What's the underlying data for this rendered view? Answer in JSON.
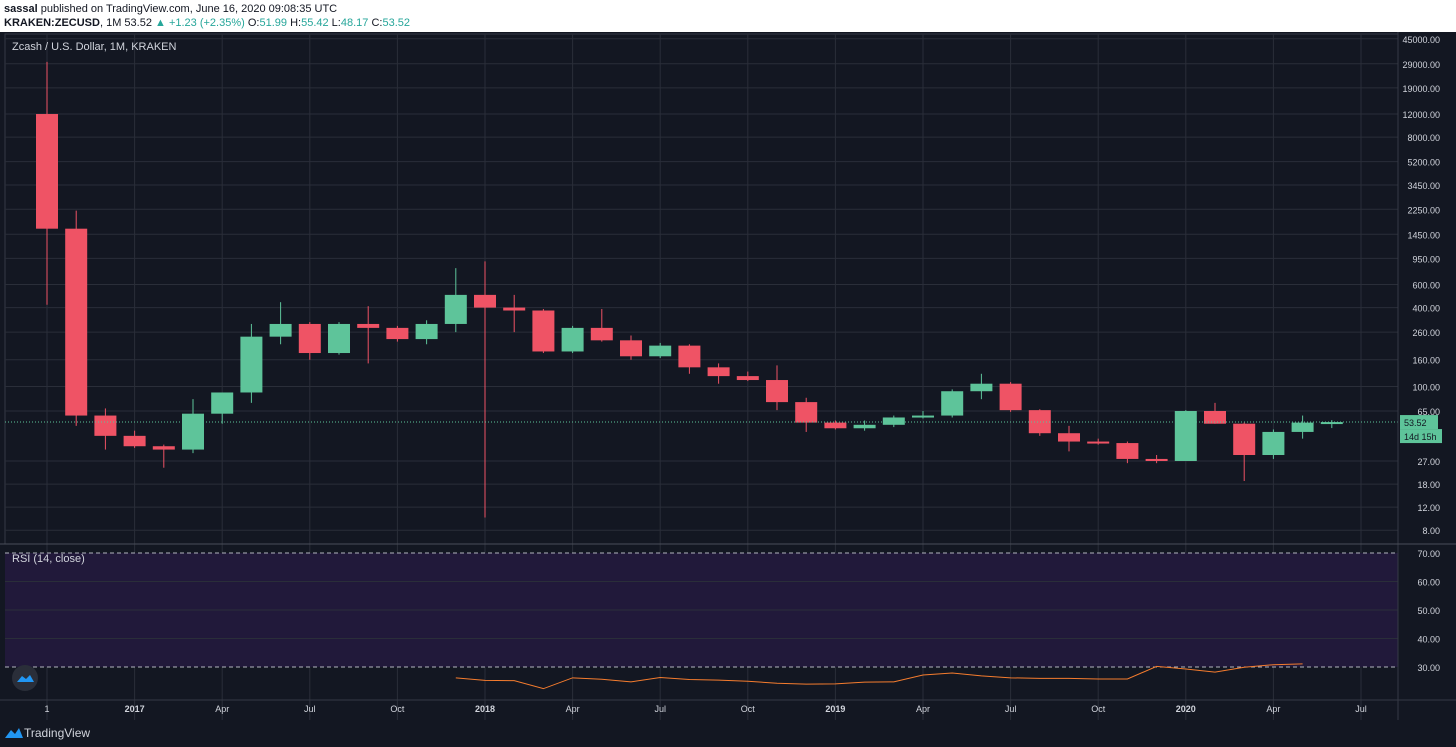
{
  "header": {
    "publisher": "sassal",
    "published_text": "published on TradingView.com, June 16, 2020 09:08:35 UTC",
    "symbol": "KRAKEN:ZECUSD",
    "interval": "1M",
    "last": "53.52",
    "change": "▲ +1.23 (+2.35%)",
    "o_label": "O:",
    "o_value": "51.99",
    "h_label": "H:",
    "h_value": "55.42",
    "l_label": "L:",
    "l_value": "48.17",
    "c_label": "C:",
    "c_value": "53.52"
  },
  "footer": {
    "brand": "TradingView"
  },
  "colors": {
    "bg": "#131722",
    "up": "#5ec49a",
    "down": "#ef5365",
    "rsi": "#f57c2e",
    "rsi_band": "#21193a",
    "grid": "#2a2e39"
  },
  "chart_data": [
    {
      "type": "candlestick",
      "title": "Zcash / U.S. Dollar, 1M, KRAKEN",
      "y_scale": "log",
      "y_ticks": [
        45000,
        29000,
        19000,
        12000,
        8000,
        5200,
        3450,
        2250,
        1450,
        950,
        600,
        400,
        260,
        160,
        100,
        65,
        27,
        18,
        12,
        8
      ],
      "y_tick_labels": [
        "45000.00",
        "29000.00",
        "19000.00",
        "12000.00",
        "8000.00",
        "5200.00",
        "3450.00",
        "2250.00",
        "1450.00",
        "950.00",
        "600.00",
        "400.00",
        "260.00",
        "160.00",
        "100.00",
        "65.00",
        "27.00",
        "18.00",
        "12.00",
        "8.00"
      ],
      "x_tick_labels": [
        "1",
        "2017",
        "Apr",
        "Jul",
        "Oct",
        "2018",
        "Apr",
        "Jul",
        "Oct",
        "2019",
        "Apr",
        "Jul",
        "Oct",
        "2020",
        "Apr",
        "Jul"
      ],
      "last_price_label": "53.52",
      "countdown_label": "14d 15h",
      "candles": [
        {
          "month": "2016-10",
          "o": 12000,
          "h": 30000,
          "l": 420,
          "c": 1600
        },
        {
          "month": "2016-11",
          "o": 1600,
          "h": 2200,
          "l": 50,
          "c": 60
        },
        {
          "month": "2016-12",
          "o": 60,
          "h": 68,
          "l": 33,
          "c": 42
        },
        {
          "month": "2017-01",
          "o": 42,
          "h": 46,
          "l": 34,
          "c": 35
        },
        {
          "month": "2017-02",
          "o": 35,
          "h": 36,
          "l": 24,
          "c": 33
        },
        {
          "month": "2017-03",
          "o": 33,
          "h": 80,
          "l": 31,
          "c": 62
        },
        {
          "month": "2017-04",
          "o": 62,
          "h": 90,
          "l": 52,
          "c": 90
        },
        {
          "month": "2017-05",
          "o": 90,
          "h": 300,
          "l": 75,
          "c": 240
        },
        {
          "month": "2017-06",
          "o": 240,
          "h": 440,
          "l": 210,
          "c": 300
        },
        {
          "month": "2017-07",
          "o": 300,
          "h": 310,
          "l": 160,
          "c": 180
        },
        {
          "month": "2017-08",
          "o": 180,
          "h": 310,
          "l": 175,
          "c": 300
        },
        {
          "month": "2017-09",
          "o": 300,
          "h": 410,
          "l": 150,
          "c": 280
        },
        {
          "month": "2017-10",
          "o": 280,
          "h": 290,
          "l": 220,
          "c": 230
        },
        {
          "month": "2017-11",
          "o": 230,
          "h": 320,
          "l": 210,
          "c": 300
        },
        {
          "month": "2017-12",
          "o": 300,
          "h": 800,
          "l": 260,
          "c": 500
        },
        {
          "month": "2018-01",
          "o": 500,
          "h": 900,
          "l": 10,
          "c": 400
        },
        {
          "month": "2018-02",
          "o": 400,
          "h": 500,
          "l": 260,
          "c": 380
        },
        {
          "month": "2018-03",
          "o": 380,
          "h": 390,
          "l": 180,
          "c": 185
        },
        {
          "month": "2018-04",
          "o": 185,
          "h": 290,
          "l": 180,
          "c": 280
        },
        {
          "month": "2018-05",
          "o": 280,
          "h": 390,
          "l": 220,
          "c": 225
        },
        {
          "month": "2018-06",
          "o": 225,
          "h": 245,
          "l": 160,
          "c": 170
        },
        {
          "month": "2018-07",
          "o": 170,
          "h": 215,
          "l": 165,
          "c": 205
        },
        {
          "month": "2018-08",
          "o": 205,
          "h": 210,
          "l": 125,
          "c": 140
        },
        {
          "month": "2018-09",
          "o": 140,
          "h": 150,
          "l": 105,
          "c": 120
        },
        {
          "month": "2018-10",
          "o": 120,
          "h": 130,
          "l": 110,
          "c": 112
        },
        {
          "month": "2018-11",
          "o": 112,
          "h": 145,
          "l": 66,
          "c": 76
        },
        {
          "month": "2018-12",
          "o": 76,
          "h": 82,
          "l": 45,
          "c": 53
        },
        {
          "month": "2019-01",
          "o": 53,
          "h": 55,
          "l": 47,
          "c": 48
        },
        {
          "month": "2019-02",
          "o": 48,
          "h": 55,
          "l": 46,
          "c": 51
        },
        {
          "month": "2019-03",
          "o": 51,
          "h": 60,
          "l": 49,
          "c": 58
        },
        {
          "month": "2019-04",
          "o": 58,
          "h": 65,
          "l": 57,
          "c": 60
        },
        {
          "month": "2019-05",
          "o": 60,
          "h": 95,
          "l": 58,
          "c": 92
        },
        {
          "month": "2019-06",
          "o": 92,
          "h": 125,
          "l": 80,
          "c": 105
        },
        {
          "month": "2019-07",
          "o": 105,
          "h": 108,
          "l": 64,
          "c": 66
        },
        {
          "month": "2019-08",
          "o": 66,
          "h": 67,
          "l": 42,
          "c": 44
        },
        {
          "month": "2019-09",
          "o": 44,
          "h": 50,
          "l": 32,
          "c": 38
        },
        {
          "month": "2019-10",
          "o": 38,
          "h": 40,
          "l": 36,
          "c": 37
        },
        {
          "month": "2019-11",
          "o": 37,
          "h": 38,
          "l": 26,
          "c": 28
        },
        {
          "month": "2019-12",
          "o": 28,
          "h": 30,
          "l": 26,
          "c": 27
        },
        {
          "month": "2020-01",
          "o": 27,
          "h": 66,
          "l": 27,
          "c": 65
        },
        {
          "month": "2020-02",
          "o": 65,
          "h": 75,
          "l": 52,
          "c": 52
        },
        {
          "month": "2020-03",
          "o": 52,
          "h": 53,
          "l": 19,
          "c": 30
        },
        {
          "month": "2020-04",
          "o": 30,
          "h": 47,
          "l": 28,
          "c": 45
        },
        {
          "month": "2020-05",
          "o": 45,
          "h": 60,
          "l": 40,
          "c": 53
        },
        {
          "month": "2020-06",
          "o": 52,
          "h": 55.42,
          "l": 48.17,
          "c": 53.52
        }
      ]
    },
    {
      "type": "line",
      "title": "RSI (14, close)",
      "ylim": [
        20,
        72
      ],
      "y_tick_labels": [
        "70.00",
        "60.00",
        "50.00",
        "40.00",
        "30.00"
      ],
      "y_ticks": [
        70,
        60,
        50,
        40,
        30
      ],
      "band": [
        30,
        70
      ],
      "series": [
        {
          "values_start_month": "2017-12",
          "values": [
            26.2,
            25.3,
            25.2,
            22.4,
            26.2,
            25.7,
            24.8,
            26.3,
            25.6,
            25.4,
            25.0,
            24.3,
            24.0,
            24.1,
            24.7,
            24.8,
            27.2,
            27.9,
            26.9,
            26.2,
            26.0,
            26.0,
            25.8,
            25.8,
            30.2,
            29.3,
            28.2,
            29.9,
            30.8,
            31.1
          ]
        }
      ]
    }
  ]
}
